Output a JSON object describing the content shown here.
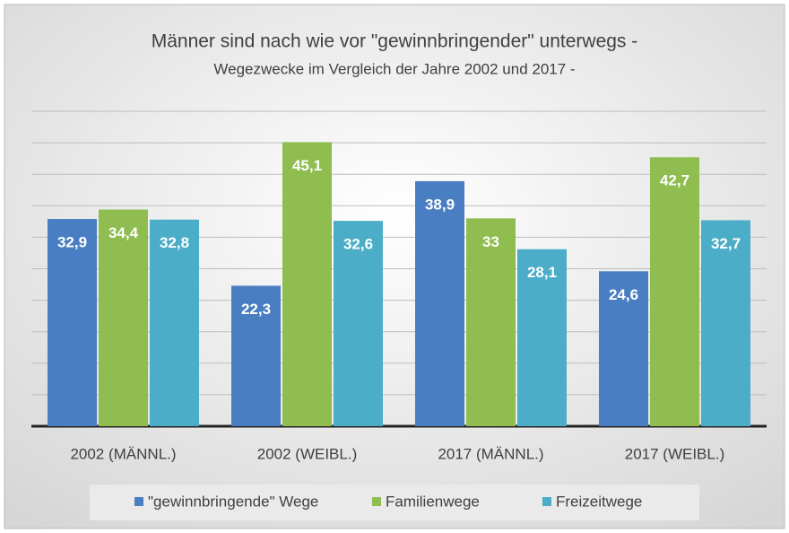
{
  "chart_data": {
    "type": "bar",
    "title": "Männer sind nach wie vor \"gewinnbringender\" unterwegs -",
    "subtitle": "Wegezwecke im Vergleich der Jahre 2002 und 2017 -",
    "categories": [
      "2002 (MÄNNL.)",
      "2002 (WEIBL.)",
      "2017 (MÄNNL.)",
      "2017 (WEIBL.)"
    ],
    "series": [
      {
        "name": "\"gewinnbringende\" Wege",
        "color": "#4a7ec2",
        "values": [
          32.9,
          22.3,
          38.9,
          24.6
        ],
        "value_labels": [
          "32,9",
          "22,3",
          "38,9",
          "24,6"
        ]
      },
      {
        "name": "Familienwege",
        "color": "#8fbd4f",
        "values": [
          34.4,
          45.1,
          33,
          42.7
        ],
        "value_labels": [
          "34,4",
          "45,1",
          "33",
          "42,7"
        ]
      },
      {
        "name": "Freizeitwege",
        "color": "#4badc7",
        "values": [
          32.8,
          32.6,
          28.1,
          32.7
        ],
        "value_labels": [
          "32,8",
          "32,6",
          "28,1",
          "32,7"
        ]
      }
    ],
    "ylim": [
      0,
      50
    ],
    "yticks": [
      0,
      5,
      10,
      15,
      20,
      25,
      30,
      35,
      40,
      45,
      50
    ],
    "grid": true,
    "legend": "bottom"
  }
}
